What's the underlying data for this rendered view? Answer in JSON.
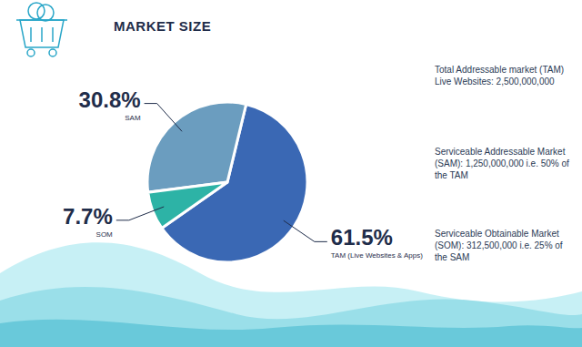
{
  "chart_data": {
    "type": "pie",
    "title": "MARKET SIZE",
    "categories": [
      "TAM (Live Websites & Apps)",
      "SAM",
      "SOM"
    ],
    "values": [
      61.5,
      30.8,
      7.7
    ],
    "value_labels": [
      "61.5%",
      "30.8%",
      "7.7%"
    ],
    "data_labels": true,
    "colors": [
      "#3a68b4",
      "#6b9dbf",
      "#2db3a6"
    ],
    "annotations": [
      "Total Addressable market (TAM)   Live Websites: 2,500,000,000",
      "Serviceable Addressable Market (SAM): 1,250,000,000 i.e. 50% of the TAM",
      "Serviceable Obtainable Market (SOM): 312,500,000 i.e. 25% of the SAM"
    ]
  }
}
